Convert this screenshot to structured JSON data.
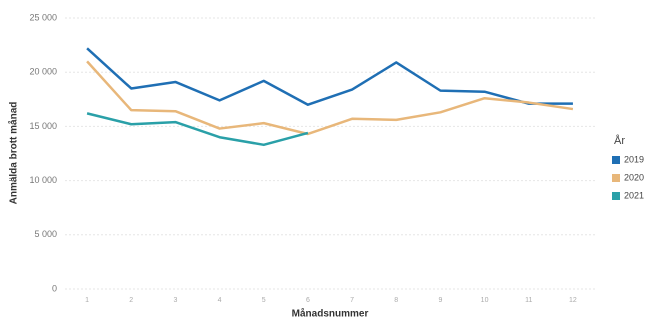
{
  "chart_data": {
    "type": "line",
    "x_label": "Månadsnummer",
    "y_label": "Anmälda brott månad",
    "categories": [
      "1",
      "2",
      "3",
      "4",
      "5",
      "6",
      "7",
      "8",
      "9",
      "10",
      "11",
      "12"
    ],
    "series": [
      {
        "name": "2019",
        "color": "#1f6fb4",
        "values": [
          22200,
          18500,
          19100,
          17400,
          19200,
          17000,
          18400,
          20900,
          18300,
          18200,
          17100,
          17100
        ]
      },
      {
        "name": "2020",
        "color": "#e8b77a",
        "values": [
          21000,
          16500,
          16400,
          14800,
          15300,
          14300,
          15700,
          15600,
          16300,
          17600,
          17200,
          16600
        ]
      },
      {
        "name": "2021",
        "color": "#2aa0a8",
        "values": [
          16200,
          15200,
          15400,
          14000,
          13300,
          14400,
          null,
          null,
          null,
          null,
          null,
          null
        ]
      }
    ],
    "legend_title": "År",
    "legend_position": "right",
    "ylim": [
      0,
      25000
    ],
    "yticks": [
      0,
      {
        "value": 5000,
        "label": "5 000"
      },
      {
        "value": 10000,
        "label": "10 000"
      },
      {
        "value": 15000,
        "label": "15 000"
      },
      {
        "value": 20000,
        "label": "20 000"
      },
      {
        "value": 25000,
        "label": "25 000"
      }
    ],
    "grid": true
  }
}
